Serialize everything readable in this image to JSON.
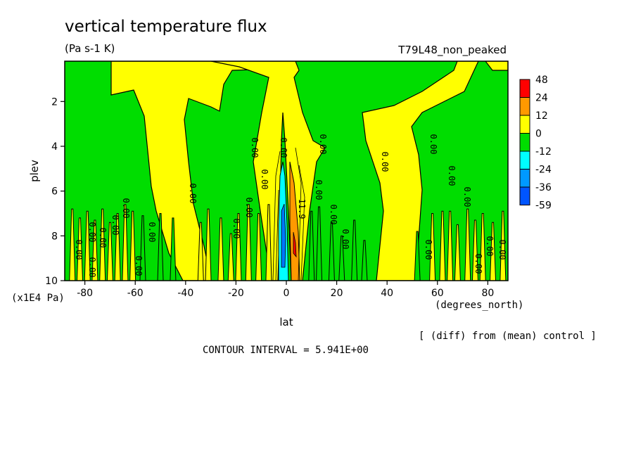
{
  "chart_data": {
    "type": "heatmap",
    "title": "vertical temperature flux",
    "units": "(Pa s-1 K)",
    "run_label": "T79L48_non_peaked",
    "xlabel": "lat",
    "x_units": "(degrees_north)",
    "ylabel": "plev",
    "y_units": "(x1E4 Pa)",
    "xlim": [
      -88,
      88
    ],
    "ylim": [
      10,
      0.2
    ],
    "x_ticks": [
      "-80",
      "-60",
      "-40",
      "-20",
      "0",
      "20",
      "40",
      "60",
      "80"
    ],
    "x_tick_values": [
      -80,
      -60,
      -40,
      -20,
      0,
      20,
      40,
      60,
      80
    ],
    "y_ticks": [
      "2",
      "4",
      "6",
      "8",
      "10"
    ],
    "y_tick_values": [
      2,
      4,
      6,
      8,
      10
    ],
    "note": "[ (diff) from (mean) control ]",
    "contour_interval": "CONTOUR INTERVAL = 5.941E+00",
    "colorbar": {
      "labels": [
        "48",
        "24",
        "12",
        "0",
        "-12",
        "-24",
        "-36",
        "-59"
      ],
      "colors": [
        "#ff0000",
        "#ff9900",
        "#ffff00",
        "#00dd00",
        "#00ffff",
        "#0099ff",
        "#0055ff"
      ]
    },
    "contour_labels": [
      "0.00",
      "0.00",
      "0.00",
      "0.00",
      "0.00",
      "0.00",
      "0.00",
      "0.00",
      "0.00",
      "0.00",
      "0.00",
      "0.00",
      "0.00",
      "0.00",
      "0.00",
      "0.00",
      "0.00",
      "0.00",
      "0.00",
      "0.00",
      "0.00",
      "0.00",
      "0.00",
      "0.00",
      "0.00",
      "0.00",
      "11.9"
    ],
    "background_color": "#00dd00",
    "positive_color": "#ffff00"
  }
}
